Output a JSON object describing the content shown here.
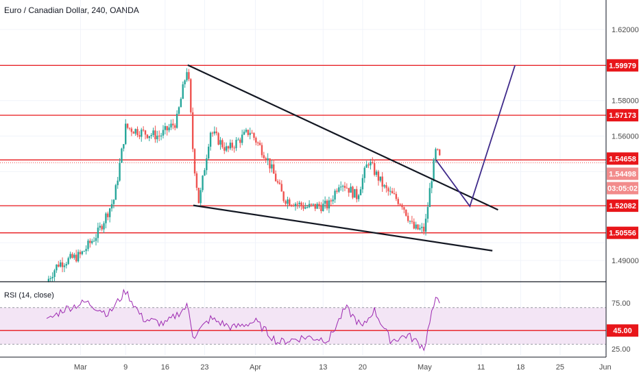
{
  "header": {
    "title": "Euro / Canadian Dollar, 240, OANDA"
  },
  "rsi": {
    "title": "RSI (14, close)"
  },
  "colors": {
    "up": "#26a69a",
    "down": "#ef5350",
    "level": "#e8161a",
    "trend": "#131722",
    "projection": "#3f2a8a",
    "rsi_line": "#9c27b0",
    "rsi_band": "#f3e5f5",
    "current": "#ef5350"
  },
  "chart_data": [
    {
      "type": "line",
      "instrument": "Euro / Canadian Dollar, 240, OANDA",
      "x_tick_labels": [
        "Mar",
        "9",
        "16",
        "23",
        "Apr",
        "13",
        "20",
        "May",
        "11",
        "18",
        "25",
        "Jun"
      ],
      "y_tick_labels": [
        "1.62000",
        "1.58000",
        "1.56000",
        "1.49000"
      ],
      "ylim": [
        1.4775,
        1.6325
      ],
      "price_path": [
        {
          "x": "2020-02-24",
          "y": 1.478
        },
        {
          "x": "2020-02-26",
          "y": 1.488
        },
        {
          "x": "2020-03-01",
          "y": 1.493
        },
        {
          "x": "2020-03-04",
          "y": 1.505
        },
        {
          "x": "2020-03-07",
          "y": 1.525
        },
        {
          "x": "2020-03-09",
          "y": 1.565
        },
        {
          "x": "2020-03-12",
          "y": 1.562
        },
        {
          "x": "2020-03-15",
          "y": 1.56
        },
        {
          "x": "2020-03-18",
          "y": 1.568
        },
        {
          "x": "2020-03-20",
          "y": 1.6
        },
        {
          "x": "2020-03-21",
          "y": 1.548
        },
        {
          "x": "2020-03-22",
          "y": 1.522
        },
        {
          "x": "2020-03-24",
          "y": 1.563
        },
        {
          "x": "2020-03-27",
          "y": 1.552
        },
        {
          "x": "2020-03-31",
          "y": 1.563
        },
        {
          "x": "2020-04-03",
          "y": 1.548
        },
        {
          "x": "2020-04-06",
          "y": 1.525
        },
        {
          "x": "2020-04-10",
          "y": 1.52
        },
        {
          "x": "2020-04-14",
          "y": 1.521
        },
        {
          "x": "2020-04-16",
          "y": 1.535
        },
        {
          "x": "2020-04-19",
          "y": 1.526
        },
        {
          "x": "2020-04-21",
          "y": 1.546
        },
        {
          "x": "2020-04-24",
          "y": 1.53
        },
        {
          "x": "2020-04-27",
          "y": 1.522
        },
        {
          "x": "2020-04-29",
          "y": 1.508
        },
        {
          "x": "2020-05-01",
          "y": 1.507
        },
        {
          "x": "2020-05-02",
          "y": 1.532
        },
        {
          "x": "2020-05-03",
          "y": 1.552
        },
        {
          "x": "2020-05-04",
          "y": 1.545
        }
      ],
      "horizontal_levels": [
        {
          "label": "1.59979",
          "value": 1.59979
        },
        {
          "label": "1.57173",
          "value": 1.57173
        },
        {
          "label": "1.54658",
          "value": 1.54658
        },
        {
          "label": "1.52082",
          "value": 1.52082
        },
        {
          "label": "1.50556",
          "value": 1.50556
        }
      ],
      "current_price": {
        "label": "1.54498",
        "value": 1.54498
      },
      "countdown": "03:05:02",
      "trendlines": [
        {
          "name": "upper",
          "points": [
            {
              "x": "2020-03-20",
              "y": 1.6
            },
            {
              "x": "2020-05-14",
              "y": 1.5185
            }
          ]
        },
        {
          "name": "lower",
          "points": [
            {
              "x": "2020-03-21",
              "y": 1.521
            },
            {
              "x": "2020-05-13",
              "y": 1.4955
            }
          ]
        }
      ],
      "projection_path": [
        {
          "x": "2020-05-03",
          "y": 1.5466
        },
        {
          "x": "2020-05-09",
          "y": 1.5205
        },
        {
          "x": "2020-05-17",
          "y": 1.5998
        }
      ],
      "grid": true
    },
    {
      "type": "line",
      "title": "RSI (14, close)",
      "y_tick_labels": [
        "75.00",
        "25.00"
      ],
      "ylim": [
        18,
        96
      ],
      "band": [
        30,
        70
      ],
      "level": {
        "label": "45.00",
        "value": 45
      },
      "rsi_path": [
        {
          "x": "2020-02-24",
          "y": 55
        },
        {
          "x": "2020-02-27",
          "y": 68
        },
        {
          "x": "2020-03-02",
          "y": 76
        },
        {
          "x": "2020-03-06",
          "y": 63
        },
        {
          "x": "2020-03-09",
          "y": 88
        },
        {
          "x": "2020-03-12",
          "y": 58
        },
        {
          "x": "2020-03-16",
          "y": 52
        },
        {
          "x": "2020-03-20",
          "y": 72
        },
        {
          "x": "2020-03-21",
          "y": 38
        },
        {
          "x": "2020-03-24",
          "y": 58
        },
        {
          "x": "2020-03-28",
          "y": 48
        },
        {
          "x": "2020-04-01",
          "y": 55
        },
        {
          "x": "2020-04-05",
          "y": 32
        },
        {
          "x": "2020-04-10",
          "y": 38
        },
        {
          "x": "2020-04-14",
          "y": 35
        },
        {
          "x": "2020-04-17",
          "y": 70
        },
        {
          "x": "2020-04-20",
          "y": 48
        },
        {
          "x": "2020-04-22",
          "y": 68
        },
        {
          "x": "2020-04-25",
          "y": 34
        },
        {
          "x": "2020-04-28",
          "y": 40
        },
        {
          "x": "2020-05-01",
          "y": 26
        },
        {
          "x": "2020-05-02",
          "y": 60
        },
        {
          "x": "2020-05-03",
          "y": 78
        },
        {
          "x": "2020-05-04",
          "y": 74
        }
      ]
    }
  ]
}
